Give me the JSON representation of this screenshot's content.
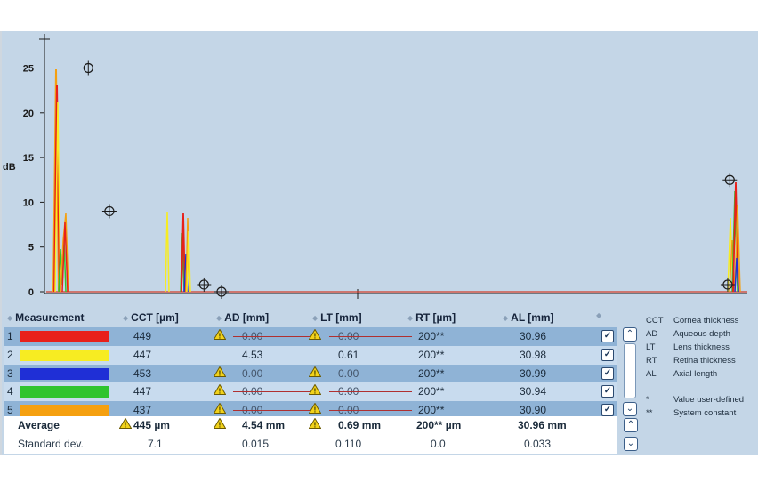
{
  "colors": {
    "bg": "#c4d6e7",
    "trace": "#d23c2a",
    "row_dark": "#8fb3d6",
    "row_light": "#c8dbee",
    "warning": "#f2d21a"
  },
  "chart": {
    "y_axis_label": "dB",
    "y_ticks": [
      "25",
      "20",
      "15",
      "10",
      "5",
      "0"
    ],
    "y_tick_values": [
      25,
      20,
      15,
      10,
      5,
      0
    ],
    "markers_db": [
      {
        "name": "cct-marker-1",
        "pos": 0.06,
        "db": 25
      },
      {
        "name": "cct-marker-2",
        "pos": 0.09,
        "db": 9
      },
      {
        "name": "ad-marker-1",
        "pos": 0.225,
        "db": 0.8
      },
      {
        "name": "ad-marker-2",
        "pos": 0.25,
        "db": 0
      },
      {
        "name": "al-marker-1",
        "pos": 0.975,
        "db": 12.5
      },
      {
        "name": "al-marker-2",
        "pos": 0.972,
        "db": 0.8
      }
    ]
  },
  "table": {
    "headers": {
      "measurement": "Measurement",
      "cct": "CCT [µm]",
      "ad": "AD [mm]",
      "lt": "LT [mm]",
      "rt": "RT [µm]",
      "al": "AL [mm]"
    },
    "rows": [
      {
        "index": "1",
        "color": "#e8201a",
        "cct": "449",
        "ad": "0.00",
        "lt": "0.00",
        "rt": "200**",
        "al": "30.96",
        "ad_warn": true,
        "lt_warn": true,
        "style": "dark"
      },
      {
        "index": "2",
        "color": "#f7ec22",
        "cct": "447",
        "ad": "4.53",
        "lt": "0.61",
        "rt": "200**",
        "al": "30.98",
        "ad_warn": false,
        "lt_warn": false,
        "style": "light"
      },
      {
        "index": "3",
        "color": "#1f2fd6",
        "cct": "453",
        "ad": "0.00",
        "lt": "0.00",
        "rt": "200**",
        "al": "30.99",
        "ad_warn": true,
        "lt_warn": true,
        "style": "dark"
      },
      {
        "index": "4",
        "color": "#2fc42f",
        "cct": "447",
        "ad": "0.00",
        "lt": "0.00",
        "rt": "200**",
        "al": "30.94",
        "ad_warn": true,
        "lt_warn": true,
        "style": "light"
      },
      {
        "index": "5",
        "color": "#f5a010",
        "cct": "437",
        "ad": "0.00",
        "lt": "0.00",
        "rt": "200**",
        "al": "30.90",
        "ad_warn": true,
        "lt_warn": true,
        "style": "dark"
      }
    ],
    "average": {
      "label": "Average",
      "cct": "445 µm",
      "ad": "4.54 mm",
      "lt": "0.69 mm",
      "rt": "200** µm",
      "al": "30.96 mm"
    },
    "stddev": {
      "label": "Standard dev.",
      "cct": "7.1",
      "ad": "0.015",
      "lt": "0.110",
      "rt": "0.0",
      "al": "0.033"
    }
  },
  "legend": [
    {
      "abbr": "CCT",
      "text": "Cornea thickness"
    },
    {
      "abbr": "AD",
      "text": "Aqueous depth"
    },
    {
      "abbr": "LT",
      "text": "Lens thickness"
    },
    {
      "abbr": "RT",
      "text": "Retina thickness"
    },
    {
      "abbr": "AL",
      "text": "Axial length"
    }
  ],
  "notes": [
    {
      "sym": "*",
      "text": "Value user-defined"
    },
    {
      "sym": "**",
      "text": "System constant"
    }
  ]
}
